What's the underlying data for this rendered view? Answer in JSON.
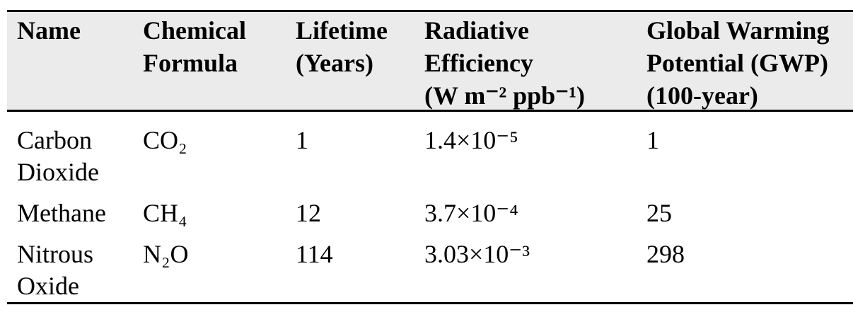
{
  "table": {
    "header": [
      [
        "Name"
      ],
      [
        "Chemical",
        "Formula"
      ],
      [
        "Lifetime",
        "(Years)"
      ],
      [
        "Radiative",
        "Efficiency",
        "(W m⁻² ppb⁻¹)"
      ],
      [
        "Global Warming",
        "Potential (GWP)",
        "(100-year)"
      ]
    ],
    "rows": [
      [
        "Carbon Dioxide",
        "CO₂",
        "1",
        "1.4×10⁻⁵",
        "1"
      ],
      [
        "Methane",
        "CH₄",
        "12",
        "3.7×10⁻⁴",
        "25"
      ],
      [
        "Nitrous Oxide",
        "N₂O",
        "114",
        "3.03×10⁻³",
        "298"
      ]
    ]
  }
}
